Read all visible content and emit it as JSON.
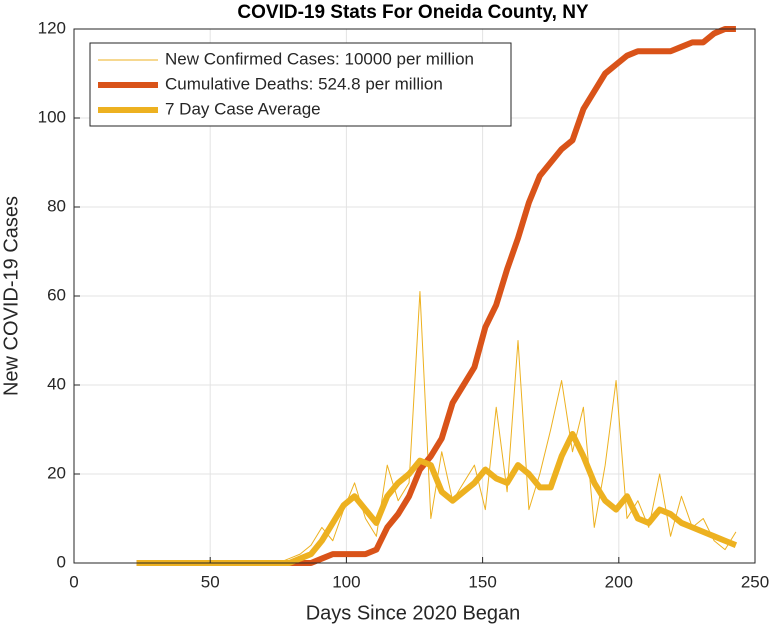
{
  "chart_data": {
    "type": "line",
    "title": "COVID-19 Stats For Oneida County, NY",
    "x_label": "Days Since 2020 Began",
    "y_label": "New COVID-19 Cases",
    "x": [
      23,
      27,
      31,
      35,
      39,
      43,
      47,
      51,
      55,
      59,
      63,
      67,
      71,
      75,
      79,
      83,
      87,
      91,
      95,
      99,
      103,
      107,
      111,
      115,
      119,
      123,
      127,
      131,
      135,
      139,
      143,
      147,
      151,
      155,
      159,
      163,
      167,
      171,
      175,
      179,
      183,
      187,
      191,
      195,
      199,
      203,
      207,
      211,
      215,
      219,
      223,
      227,
      231,
      235,
      239,
      243
    ],
    "series": [
      {
        "name": "New Confirmed Cases: 10000 per million",
        "color": "#EDB120",
        "linewidth": 1,
        "values": [
          0,
          0,
          0,
          0,
          0,
          0,
          0,
          0,
          0,
          0,
          0,
          0,
          0,
          0,
          1,
          2,
          4,
          8,
          5,
          12,
          18,
          10,
          6,
          22,
          14,
          18,
          61,
          10,
          25,
          14,
          18,
          22,
          12,
          35,
          16,
          50,
          12,
          20,
          30,
          41,
          25,
          35,
          8,
          22,
          41,
          10,
          14,
          8,
          20,
          6,
          15,
          8,
          10,
          5,
          3,
          7
        ]
      },
      {
        "name": "Cumulative Deaths: 524.8 per million",
        "color": "#D95319",
        "linewidth": 6,
        "values": [
          0,
          0,
          0,
          0,
          0,
          0,
          0,
          0,
          0,
          0,
          0,
          0,
          0,
          0,
          0,
          0,
          0,
          1,
          2,
          2,
          2,
          2,
          3,
          8,
          11,
          15,
          21,
          24,
          28,
          36,
          40,
          44,
          53,
          58,
          66,
          73,
          81,
          87,
          90,
          93,
          95,
          102,
          106,
          110,
          112,
          114,
          115,
          115,
          115,
          115,
          116,
          117,
          117,
          119,
          120,
          120
        ]
      },
      {
        "name": "7 Day Case Average",
        "color": "#EDB120",
        "linewidth": 6,
        "values": [
          0,
          0,
          0,
          0,
          0,
          0,
          0,
          0,
          0,
          0,
          0,
          0,
          0,
          0,
          0,
          1,
          2,
          5,
          9,
          13,
          15,
          12,
          9,
          15,
          18,
          20,
          23,
          22,
          16,
          14,
          16,
          18,
          21,
          19,
          18,
          22,
          20,
          17,
          17,
          24,
          29,
          24,
          18,
          14,
          12,
          15,
          10,
          9,
          12,
          11,
          9,
          8,
          7,
          6,
          5,
          4
        ]
      }
    ],
    "xlim": [
      0,
      250
    ],
    "xticks": [
      0,
      50,
      100,
      150,
      200,
      250
    ],
    "ylim": [
      0,
      120
    ],
    "yticks": [
      0,
      20,
      40,
      60,
      80,
      100,
      120
    ],
    "grid": true,
    "legend": "upper-left"
  }
}
